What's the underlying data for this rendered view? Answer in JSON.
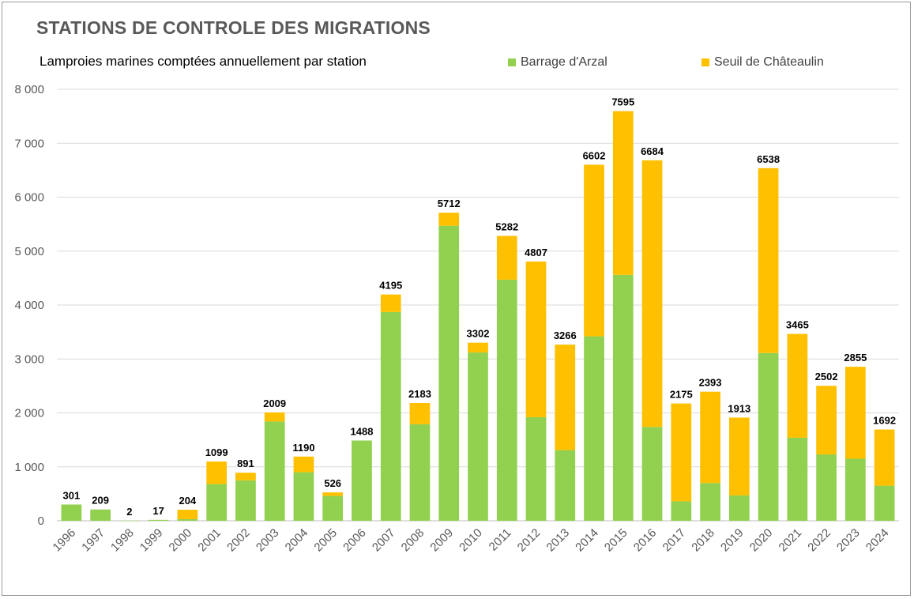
{
  "chart_data": {
    "type": "bar",
    "stacked": true,
    "title": "STATIONS DE CONTROLE DES MIGRATIONS",
    "subtitle": "Lamproies marines comptées annuellement par station",
    "xlabel": "",
    "ylabel": "",
    "ylim": [
      0,
      8000
    ],
    "yticks": [
      0,
      1000,
      2000,
      3000,
      4000,
      5000,
      6000,
      7000,
      8000
    ],
    "ytick_labels": [
      "0",
      "1 000",
      "2 000",
      "3 000",
      "4 000",
      "5 000",
      "6 000",
      "7 000",
      "8 000"
    ],
    "grid": true,
    "legend_position": "top-right",
    "categories": [
      "1996",
      "1997",
      "1998",
      "1999",
      "2000",
      "2001",
      "2002",
      "2003",
      "2004",
      "2005",
      "2006",
      "2007",
      "2008",
      "2009",
      "2010",
      "2011",
      "2012",
      "2013",
      "2014",
      "2015",
      "2016",
      "2017",
      "2018",
      "2019",
      "2020",
      "2021",
      "2022",
      "2023",
      "2024"
    ],
    "series": [
      {
        "name": "Barrage d'Arzal",
        "color": "#92d050",
        "values": [
          301,
          209,
          2,
          17,
          30,
          680,
          750,
          1840,
          900,
          460,
          1488,
          3870,
          1790,
          5470,
          3120,
          4470,
          1920,
          1310,
          3420,
          4560,
          1740,
          360,
          700,
          470,
          3110,
          1540,
          1230,
          1150,
          650
        ]
      },
      {
        "name": "Seuil de Châteaulin",
        "color": "#ffc000",
        "values": [
          0,
          0,
          0,
          0,
          174,
          419,
          141,
          169,
          290,
          66,
          0,
          325,
          393,
          242,
          182,
          812,
          2887,
          1956,
          3182,
          3035,
          4944,
          1815,
          1693,
          1443,
          3428,
          1925,
          1272,
          1705,
          1042
        ]
      }
    ],
    "totals": [
      301,
      209,
      2,
      17,
      204,
      1099,
      891,
      2009,
      1190,
      526,
      1488,
      4195,
      2183,
      5712,
      3302,
      5282,
      4807,
      3266,
      6602,
      7595,
      6684,
      2175,
      2393,
      1913,
      6538,
      3465,
      2502,
      2855,
      1692
    ]
  },
  "colors": {
    "grid": "#d9d9d9",
    "axis": "#bfbfbf",
    "tick_text": "#595959",
    "label_text": "#000000"
  }
}
